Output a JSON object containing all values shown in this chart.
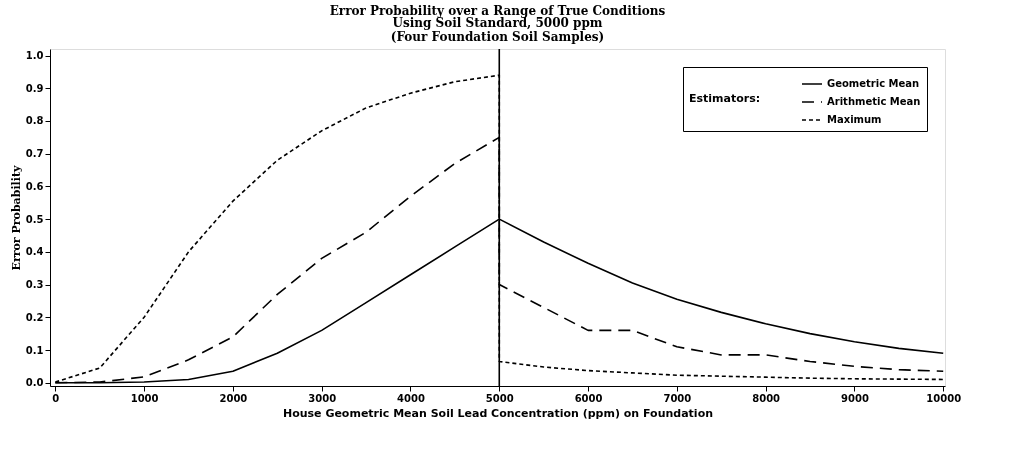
{
  "chart_data": {
    "type": "line",
    "title": "Error Probability over a Range of True Conditions",
    "subtitle": "Using Soil Standard, 5000 ppm\n(Four Foundation Soil Samples)",
    "xlabel": "House Geometric Mean Soil Lead Concentration (ppm) on Foundation",
    "ylabel": "Error Probability",
    "legend_title": "Estimators:",
    "xlim": [
      -60,
      10020
    ],
    "xticks": [
      0,
      1000,
      2000,
      3000,
      4000,
      5000,
      6000,
      7000,
      8000,
      9000,
      10000
    ],
    "ylim": [
      -0.01,
      1.02
    ],
    "yticks": [
      {
        "value": 0,
        "label": "0.0"
      },
      {
        "value": 0.1,
        "label": "0.1"
      },
      {
        "value": 0.2,
        "label": "0.2"
      },
      {
        "value": 0.3,
        "label": "0.3"
      },
      {
        "value": 0.4,
        "label": "0.4"
      },
      {
        "value": 0.5,
        "label": "0.5"
      },
      {
        "value": 0.6,
        "label": "0.6"
      },
      {
        "value": 0.7,
        "label": "0.7"
      },
      {
        "value": 0.8,
        "label": "0.8"
      },
      {
        "value": 0.9,
        "label": "0.9"
      },
      {
        "value": 1,
        "label": "1.0"
      }
    ],
    "grid": false,
    "legend": "top right",
    "marker": "none",
    "ref_lines": [
      {
        "axis": "x",
        "value": 5000,
        "color": "#000000",
        "line_style": "solid"
      }
    ],
    "series": [
      {
        "name": "Geometric Mean",
        "color": "#000000",
        "line_style": "solid",
        "x": [
          0,
          500,
          1000,
          1500,
          2000,
          2500,
          3000,
          3500,
          4000,
          4500,
          5000,
          5500,
          6000,
          6500,
          7000,
          7500,
          8000,
          8500,
          9000,
          9500,
          10000
        ],
        "values": [
          0,
          0,
          0.002,
          0.01,
          0.035,
          0.09,
          0.16,
          0.245,
          0.33,
          0.415,
          0.5,
          0.43,
          0.365,
          0.305,
          0.255,
          0.215,
          0.18,
          0.15,
          0.125,
          0.105,
          0.09
        ]
      },
      {
        "name": "Arithmetic Mean",
        "color": "#000000",
        "line_style": "dashed",
        "x": [
          0,
          500,
          1000,
          1500,
          2000,
          2500,
          3000,
          3500,
          4000,
          4500,
          5000,
          5000,
          5500,
          6000,
          6500,
          7000,
          7500,
          8000,
          8500,
          9000,
          9500,
          10000
        ],
        "values": [
          0,
          0.002,
          0.018,
          0.07,
          0.14,
          0.27,
          0.38,
          0.46,
          0.57,
          0.67,
          0.75,
          0.3,
          0.23,
          0.16,
          0.16,
          0.11,
          0.085,
          0.085,
          0.065,
          0.05,
          0.04,
          0.035
        ]
      },
      {
        "name": "Maximum",
        "color": "#000000",
        "line_style": "dotted",
        "x": [
          0,
          500,
          1000,
          1500,
          2000,
          2500,
          3000,
          3500,
          4000,
          4500,
          5000,
          5000,
          5500,
          6000,
          6500,
          7000,
          7500,
          8000,
          8500,
          9000,
          9500,
          10000
        ],
        "values": [
          0.002,
          0.045,
          0.2,
          0.4,
          0.555,
          0.68,
          0.77,
          0.84,
          0.885,
          0.92,
          0.94,
          0.065,
          0.048,
          0.037,
          0.03,
          0.023,
          0.02,
          0.017,
          0.014,
          0.012,
          0.011,
          0.01
        ]
      }
    ]
  }
}
